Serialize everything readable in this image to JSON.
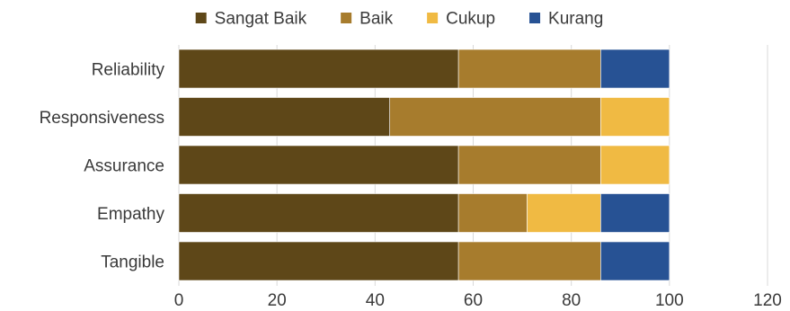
{
  "chart_data": {
    "type": "bar",
    "orientation": "horizontal",
    "stacked": true,
    "categories": [
      "Reliability",
      "Responsiveness",
      "Assurance",
      "Empathy",
      "Tangible"
    ],
    "series": [
      {
        "name": "Sangat Baik",
        "color": "#5e4718",
        "values": [
          57,
          43,
          57,
          57,
          57
        ]
      },
      {
        "name": "Baik",
        "color": "#a77c2d",
        "values": [
          29,
          43,
          29,
          14,
          29
        ]
      },
      {
        "name": "Cukup",
        "color": "#f0ba43",
        "values": [
          0,
          14,
          14,
          15,
          0
        ]
      },
      {
        "name": "Kurang",
        "color": "#275294",
        "values": [
          14,
          0,
          0,
          14,
          14
        ]
      }
    ],
    "xlim": [
      0,
      120
    ],
    "x_ticks": [
      "0",
      "20",
      "40",
      "60",
      "80",
      "100",
      "120"
    ],
    "grid": true,
    "legend_position": "top"
  }
}
